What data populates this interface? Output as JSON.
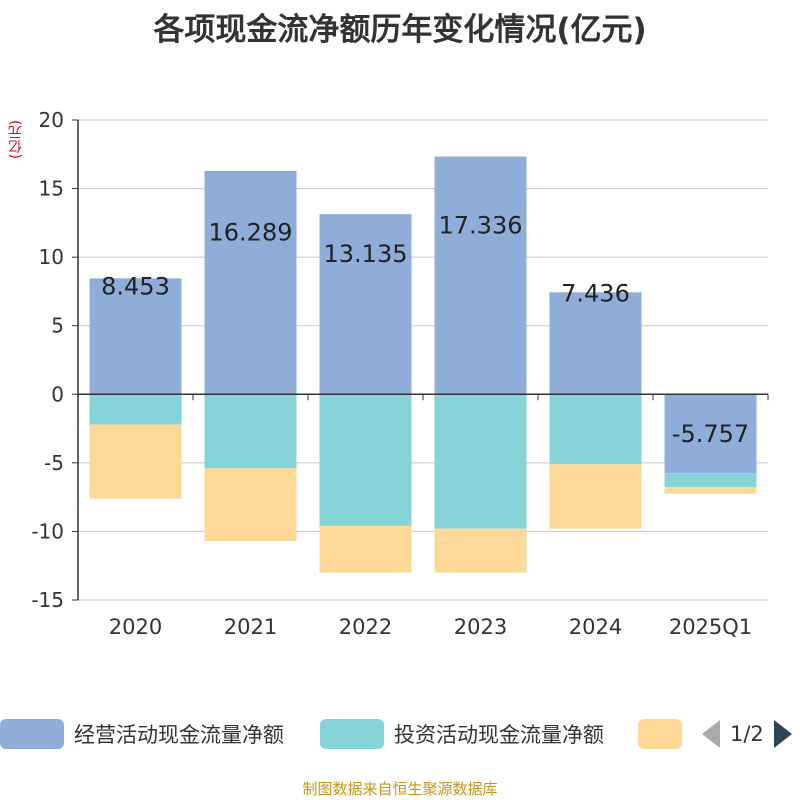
{
  "chart_data": {
    "type": "bar",
    "stacked": true,
    "title": "各项现金流净额历年变化情况(亿元)",
    "ylabel": "(亿元)",
    "xlabel": "",
    "ylim": [
      -15,
      20
    ],
    "yticks": [
      20,
      15,
      10,
      5,
      0,
      -5,
      -10,
      -15
    ],
    "categories": [
      "2020",
      "2021",
      "2022",
      "2023",
      "2024",
      "2025Q1"
    ],
    "series": [
      {
        "name": "经营活动现金流量净额",
        "color": "#8eadd9",
        "values": [
          8.453,
          16.289,
          13.135,
          17.336,
          7.436,
          -5.757
        ],
        "labels": [
          "8.453",
          "16.289",
          "13.135",
          "17.336",
          "7.436",
          "-5.757"
        ]
      },
      {
        "name": "投资活动现金流量净额",
        "color": "#86d4d7",
        "values": [
          -2.2,
          -5.4,
          -9.6,
          -9.8,
          -5.1,
          -1.0
        ]
      },
      {
        "name": "",
        "color": "#fed897",
        "values": [
          -5.4,
          -5.3,
          -3.4,
          -3.2,
          -4.7,
          -0.5
        ]
      }
    ],
    "legend_position": "bottom",
    "grid": true
  },
  "legend": {
    "items": [
      "经营活动现金流量净额",
      "投资活动现金流量净额",
      ""
    ],
    "page": "1/2"
  },
  "footer": "制图数据来自恒生聚源数据库"
}
